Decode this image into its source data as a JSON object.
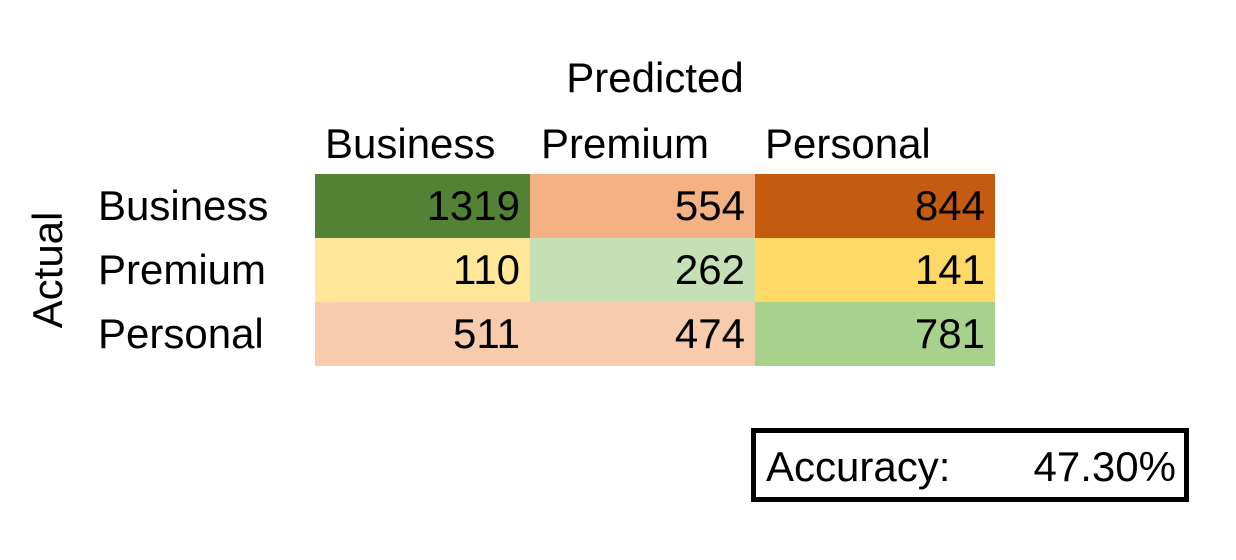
{
  "chart_data": {
    "type": "heatmap",
    "title": "Predicted",
    "xlabel": "Predicted",
    "ylabel": "Actual",
    "x_categories": [
      "Business",
      "Premium",
      "Personal"
    ],
    "y_categories": [
      "Business",
      "Premium",
      "Personal"
    ],
    "values": [
      [
        1319,
        554,
        844
      ],
      [
        110,
        262,
        141
      ],
      [
        511,
        474,
        781
      ]
    ],
    "cell_colors": [
      [
        "#548235",
        "#f4b183",
        "#c55a11"
      ],
      [
        "#ffe699",
        "#c5e0b4",
        "#ffd966"
      ],
      [
        "#f8cbad",
        "#f8cbad",
        "#a9d18e"
      ]
    ],
    "accuracy_label": "Accuracy:",
    "accuracy_value": "47.30%"
  }
}
